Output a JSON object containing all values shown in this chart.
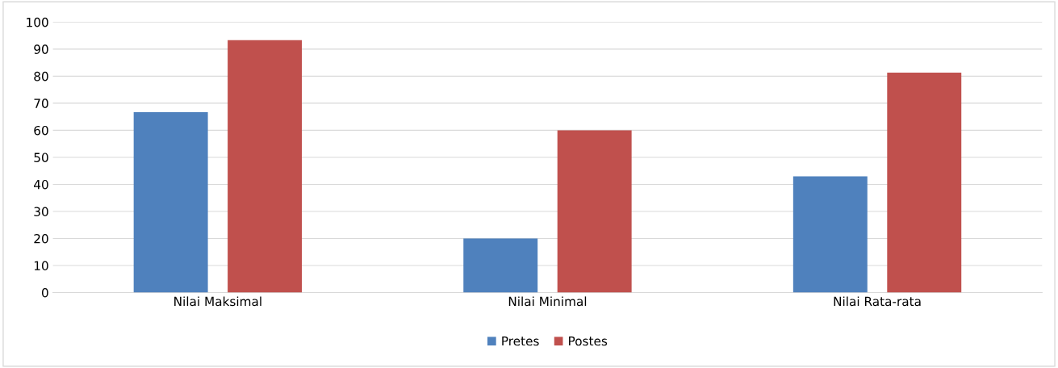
{
  "chart_data": {
    "type": "bar",
    "categories": [
      "Nilai Maksimal",
      "Nilai Minimal",
      "Nilai Rata-rata"
    ],
    "series": [
      {
        "name": "Pretes",
        "color": "#4f81bd",
        "values": [
          66.7,
          20,
          43
        ]
      },
      {
        "name": "Postes",
        "color": "#c0504d",
        "values": [
          93.3,
          60,
          81.3
        ]
      }
    ],
    "ylim": [
      0,
      100
    ],
    "yticks": [
      0,
      10,
      20,
      30,
      40,
      50,
      60,
      70,
      80,
      90,
      100
    ],
    "grid": "y",
    "legend": "bottom"
  }
}
